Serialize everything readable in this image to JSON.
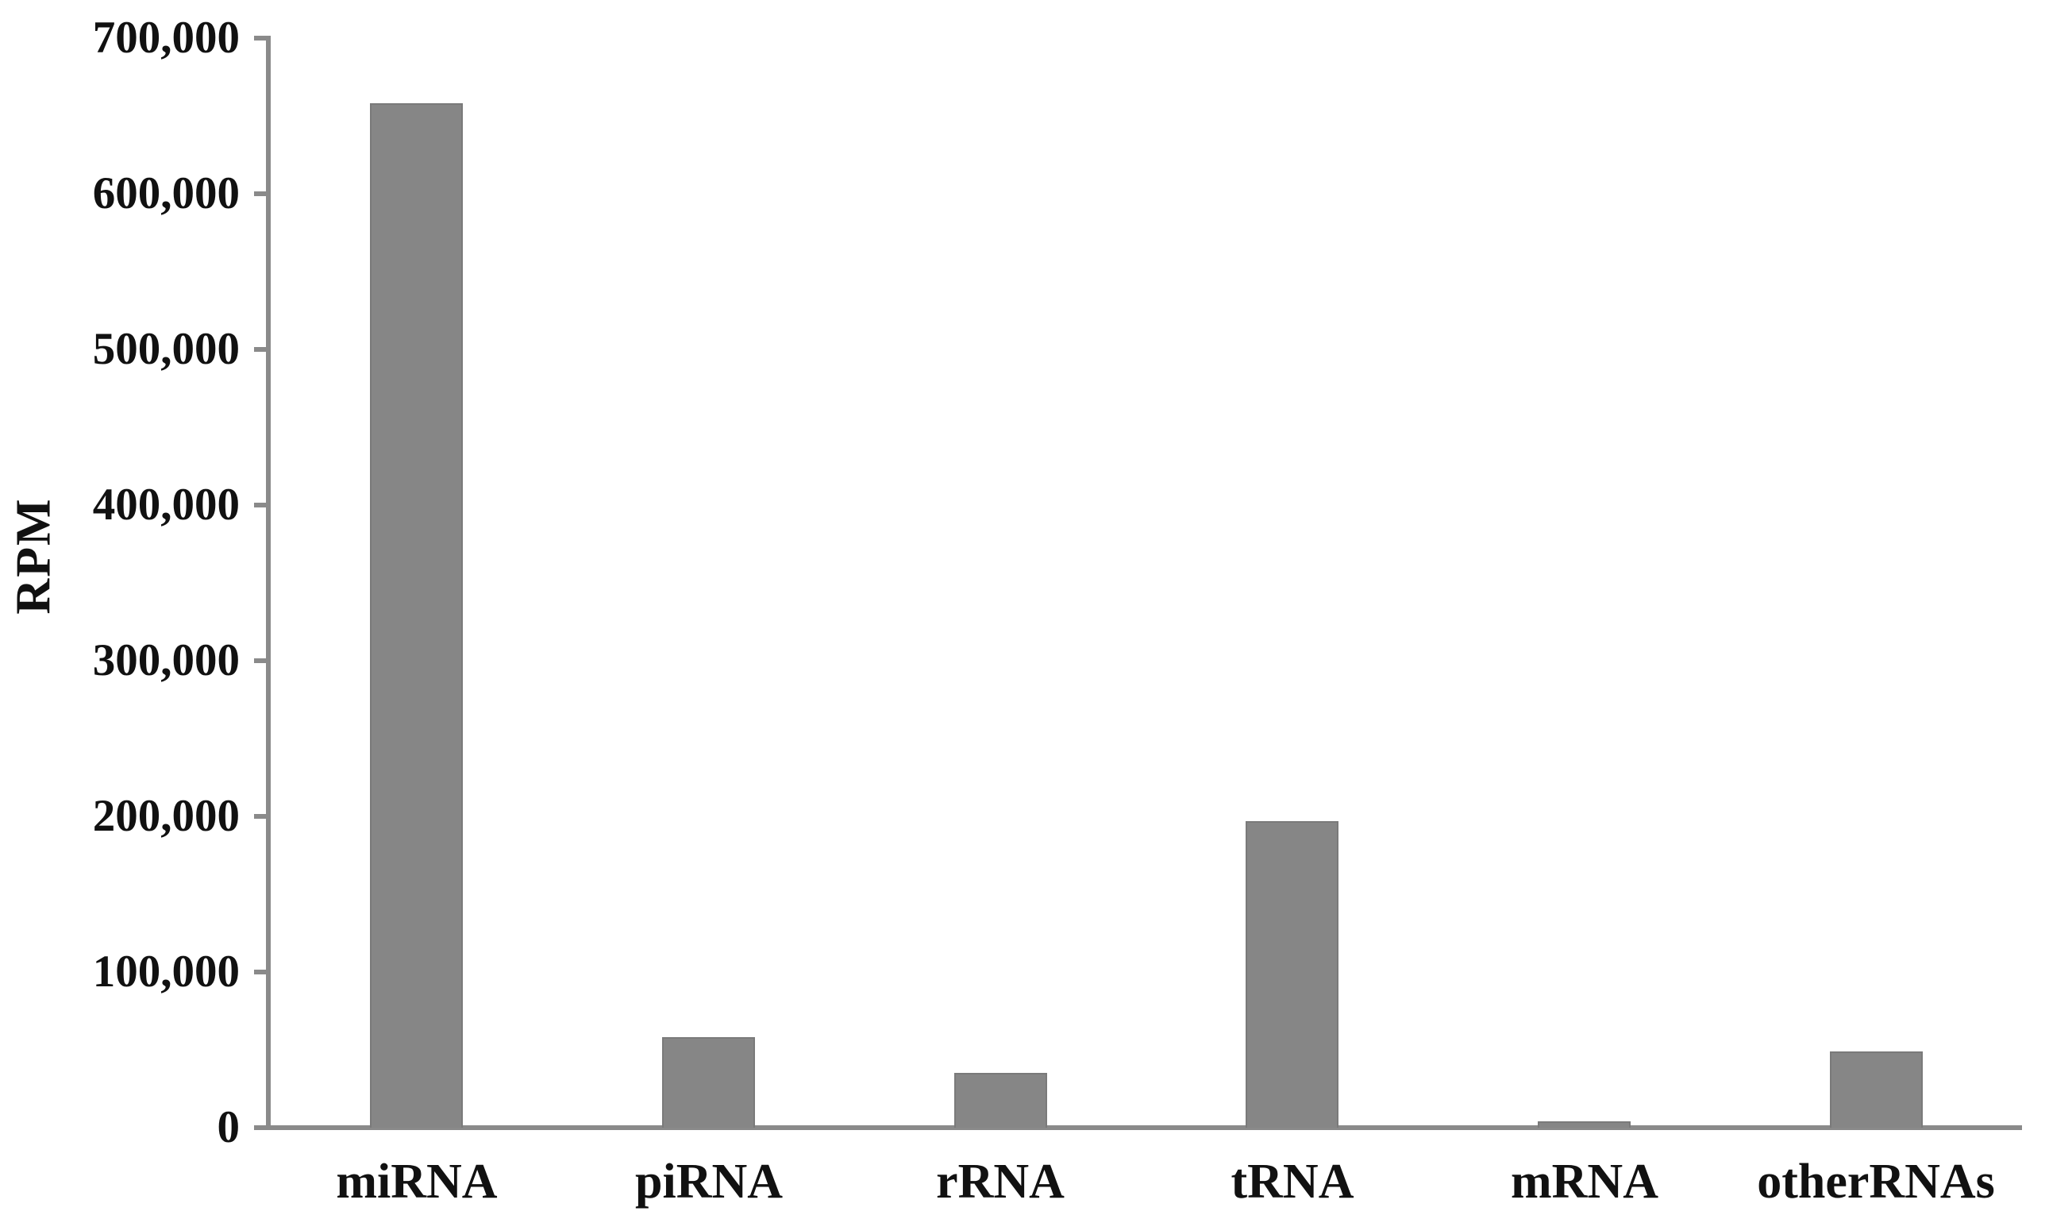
{
  "chart_data": {
    "type": "bar",
    "title": "",
    "xlabel": "",
    "ylabel": "RPM",
    "categories": [
      "miRNA",
      "piRNA",
      "rRNA",
      "tRNA",
      "mRNA",
      "otherRNAs"
    ],
    "values": [
      658000,
      58000,
      35000,
      197000,
      4000,
      49000
    ],
    "ylim": [
      0,
      700000
    ],
    "ytick_interval": 100000,
    "yticks": [
      {
        "value": 0,
        "label": "0"
      },
      {
        "value": 100000,
        "label": "100,000"
      },
      {
        "value": 200000,
        "label": "200,000"
      },
      {
        "value": 300000,
        "label": "300,000"
      },
      {
        "value": 400000,
        "label": "400,000"
      },
      {
        "value": 500000,
        "label": "500,000"
      },
      {
        "value": 600000,
        "label": "600,000"
      },
      {
        "value": 700000,
        "label": "700,000"
      }
    ],
    "grid": false,
    "legend": null,
    "series_name": "RPM",
    "bar_color": "#868686",
    "bar_border_color": "#7a7a7a",
    "axis_color": "#8a8a8a",
    "text_color": "#111111",
    "background_color": "#ffffff"
  }
}
